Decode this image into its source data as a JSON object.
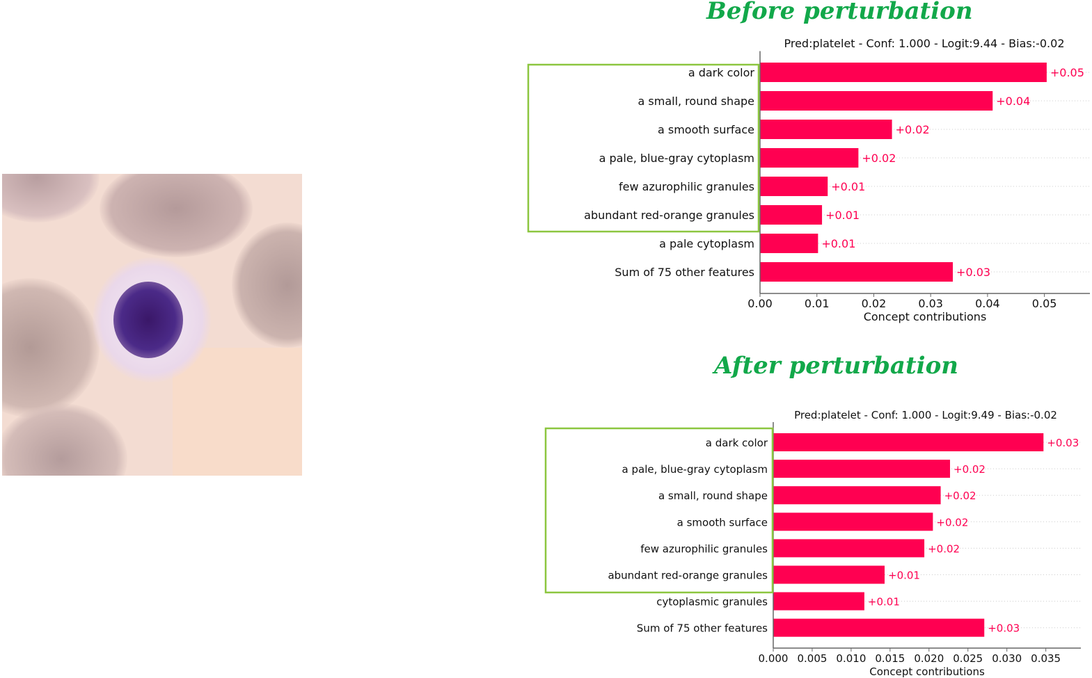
{
  "titles": {
    "before": "Before perturbation",
    "after": "After perturbation"
  },
  "colors": {
    "bar": "#ff0051",
    "title": "#12a84a",
    "highlight_box": "#8cc63f"
  },
  "chart_data": [
    {
      "type": "bar",
      "orientation": "horizontal",
      "title": "Pred:platelet - Conf: 1.000 - Logit:9.44 - Bias:-0.02",
      "xlabel": "Concept contributions",
      "categories": [
        "a dark color",
        "a small, round shape",
        "a smooth surface",
        "a pale, blue-gray cytoplasm",
        "few azurophilic granules",
        "abundant red-orange granules",
        "a pale cytoplasm",
        "Sum of 75 other features"
      ],
      "values": [
        0.0504,
        0.0409,
        0.0232,
        0.0173,
        0.0119,
        0.0109,
        0.0102,
        0.0339
      ],
      "labels": [
        "+0.05",
        "+0.04",
        "+0.02",
        "+0.02",
        "+0.01",
        "+0.01",
        "+0.01",
        "+0.03"
      ],
      "xticks": [
        "0.00",
        "0.01",
        "0.02",
        "0.03",
        "0.04",
        "0.05"
      ],
      "xtick_values": [
        0,
        0.01,
        0.02,
        0.03,
        0.04,
        0.05
      ],
      "xlim": [
        0,
        0.058
      ],
      "highlighted_count": 6
    },
    {
      "type": "bar",
      "orientation": "horizontal",
      "title": "Pred:platelet - Conf: 1.000 - Logit:9.49 - Bias:-0.02",
      "xlabel": "Concept contributions",
      "categories": [
        "a dark color",
        "a pale, blue-gray cytoplasm",
        "a small, round shape",
        "a smooth surface",
        "few azurophilic granules",
        "abundant red-orange granules",
        "cytoplasmic granules",
        "Sum of 75 other features"
      ],
      "values": [
        0.0347,
        0.0227,
        0.0215,
        0.0205,
        0.0194,
        0.0143,
        0.0117,
        0.0271
      ],
      "labels": [
        "+0.03",
        "+0.02",
        "+0.02",
        "+0.02",
        "+0.02",
        "+0.01",
        "+0.01",
        "+0.03"
      ],
      "xticks": [
        "0.000",
        "0.005",
        "0.010",
        "0.015",
        "0.020",
        "0.025",
        "0.030",
        "0.035"
      ],
      "xtick_values": [
        0,
        0.005,
        0.01,
        0.015,
        0.02,
        0.025,
        0.03,
        0.035
      ],
      "xlim": [
        0,
        0.0395
      ],
      "highlighted_count": 6
    }
  ]
}
